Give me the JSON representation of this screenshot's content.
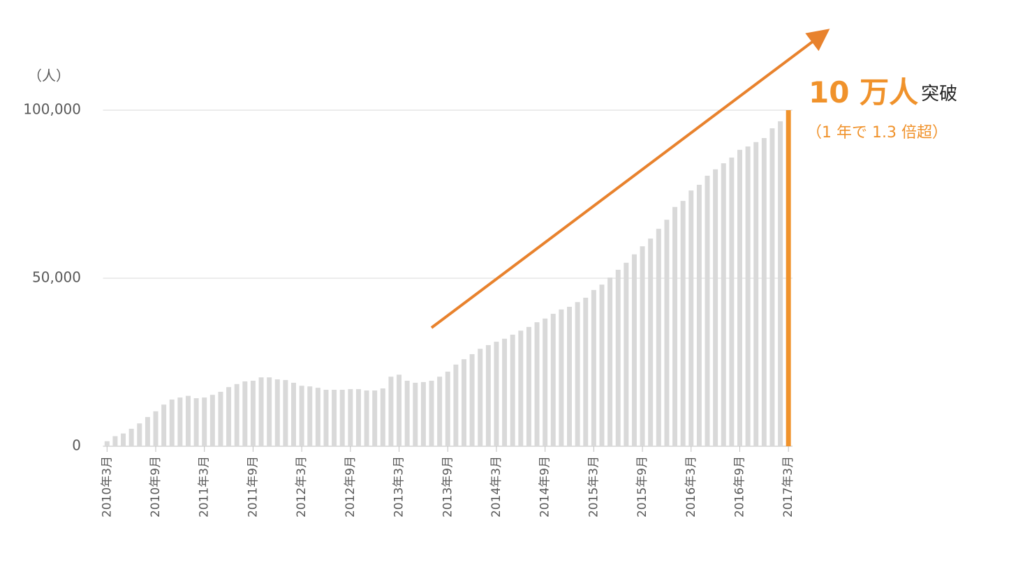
{
  "chart_data": {
    "type": "bar",
    "unit_label": "（人）",
    "annotation_main": "10 万人",
    "annotation_suffix": "突破",
    "annotation_sub": "（1 年で 1.3 倍超）",
    "categories": [
      "2010年3月",
      null,
      null,
      null,
      null,
      null,
      "2010年9月",
      null,
      null,
      null,
      null,
      null,
      "2011年3月",
      null,
      null,
      null,
      null,
      null,
      "2011年9月",
      null,
      null,
      null,
      null,
      null,
      "2012年3月",
      null,
      null,
      null,
      null,
      null,
      "2012年9月",
      null,
      null,
      null,
      null,
      null,
      "2013年3月",
      null,
      null,
      null,
      null,
      null,
      "2013年9月",
      null,
      null,
      null,
      null,
      null,
      "2014年3月",
      null,
      null,
      null,
      null,
      null,
      "2014年9月",
      null,
      null,
      null,
      null,
      null,
      "2015年3月",
      null,
      null,
      null,
      null,
      null,
      "2015年9月",
      null,
      null,
      null,
      null,
      null,
      "2016年3月",
      null,
      null,
      null,
      null,
      null,
      "2016年9月",
      null,
      null,
      null,
      null,
      null,
      "2017年3月"
    ],
    "values": [
      1500,
      3000,
      3800,
      5200,
      6800,
      8700,
      10400,
      12400,
      13900,
      14500,
      15000,
      14300,
      14500,
      15300,
      16200,
      17600,
      18500,
      19300,
      19500,
      20500,
      20500,
      19900,
      19700,
      18900,
      18000,
      17800,
      17400,
      16800,
      16800,
      16800,
      17000,
      17000,
      16600,
      16600,
      17200,
      20700,
      21300,
      19500,
      18900,
      19100,
      19500,
      20700,
      22200,
      24300,
      25900,
      27400,
      29000,
      30100,
      31100,
      32000,
      33200,
      34400,
      35500,
      36900,
      38000,
      39400,
      40700,
      41500,
      42900,
      44200,
      46500,
      48100,
      50200,
      52500,
      54600,
      57100,
      59500,
      61800,
      64700,
      67400,
      71200,
      73000,
      76100,
      77800,
      80500,
      82400,
      84200,
      85900,
      88200,
      89200,
      90500,
      91700,
      94600,
      96700,
      100000
    ],
    "color": "#d9d9d9",
    "highlight_index": 84,
    "highlight_color": "#f0922b",
    "ylim": [
      0,
      100000
    ],
    "yticks": [
      0,
      {
        "value": 50000,
        "label": "50,000"
      },
      {
        "value": 100000,
        "label": "100,000"
      }
    ],
    "grid": true
  }
}
